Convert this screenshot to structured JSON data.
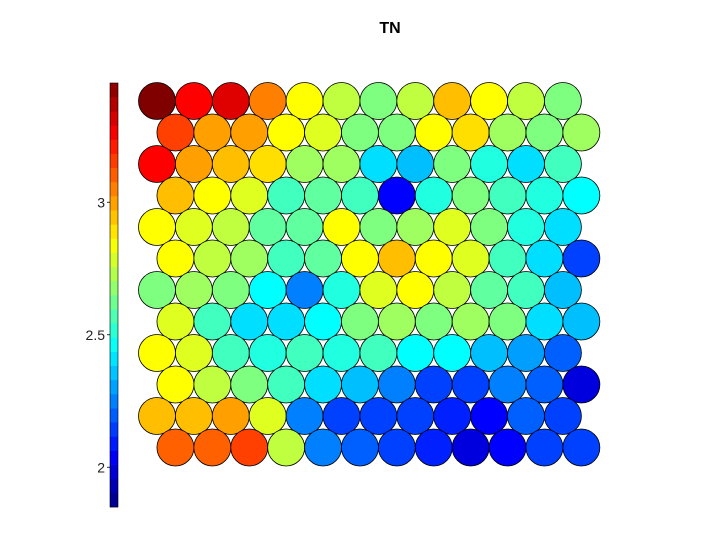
{
  "chart_data": {
    "type": "heatmap",
    "subtype": "som-hexagonal-component-plane",
    "title": "TN",
    "grid": {
      "rows": 12,
      "cols": 12,
      "layout": "hexagonal"
    },
    "colormap": "jet",
    "colorbar": {
      "position": "left",
      "range": [
        1.85,
        3.45
      ],
      "steps": 30,
      "ticks": [
        {
          "value": 2,
          "label": "2"
        },
        {
          "value": 2.5,
          "label": "2.5"
        },
        {
          "value": 3,
          "label": "3"
        }
      ]
    },
    "values": [
      [
        3.45,
        3.25,
        3.3,
        3.05,
        2.85,
        2.75,
        2.65,
        2.75,
        2.95,
        2.85,
        2.75,
        2.65
      ],
      [
        3.15,
        3.0,
        3.0,
        2.85,
        2.8,
        2.65,
        2.65,
        2.85,
        2.9,
        2.7,
        2.65,
        2.7
      ],
      [
        3.25,
        3.0,
        2.95,
        2.9,
        2.7,
        2.7,
        2.4,
        2.35,
        2.65,
        2.5,
        2.4,
        2.55
      ],
      [
        2.95,
        2.85,
        2.8,
        2.55,
        2.6,
        2.55,
        2.05,
        2.5,
        2.65,
        2.55,
        2.5,
        2.45
      ],
      [
        2.85,
        2.8,
        2.75,
        2.6,
        2.6,
        2.85,
        2.65,
        2.7,
        2.8,
        2.65,
        2.5,
        2.4
      ],
      [
        2.85,
        2.75,
        2.7,
        2.55,
        2.6,
        2.85,
        2.95,
        2.85,
        2.8,
        2.55,
        2.4,
        2.15
      ],
      [
        2.65,
        2.7,
        2.65,
        2.45,
        2.25,
        2.5,
        2.8,
        2.85,
        2.75,
        2.6,
        2.55,
        2.35
      ],
      [
        2.8,
        2.55,
        2.4,
        2.4,
        2.45,
        2.65,
        2.7,
        2.65,
        2.7,
        2.65,
        2.4,
        2.35
      ],
      [
        2.85,
        2.8,
        2.55,
        2.5,
        2.55,
        2.5,
        2.55,
        2.45,
        2.45,
        2.35,
        2.3,
        2.2
      ],
      [
        2.85,
        2.75,
        2.65,
        2.55,
        2.4,
        2.35,
        2.25,
        2.15,
        2.15,
        2.25,
        2.2,
        2.0
      ],
      [
        2.95,
        2.95,
        3.0,
        2.8,
        2.25,
        2.15,
        2.15,
        2.15,
        2.1,
        2.05,
        2.2,
        2.15
      ],
      [
        3.1,
        3.1,
        3.15,
        2.75,
        2.25,
        2.2,
        2.15,
        2.1,
        2.0,
        2.05,
        2.15,
        2.15
      ]
    ]
  }
}
